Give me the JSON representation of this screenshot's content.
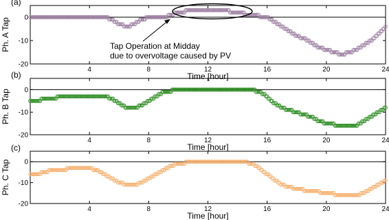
{
  "chart_data": [
    {
      "type": "scatter",
      "panel_label": "(a)",
      "title": "",
      "xlabel": "Time [hour]",
      "ylabel": "Ph. A Tap",
      "xlim": [
        0,
        24
      ],
      "ylim": [
        -20,
        5
      ],
      "xticks": [
        "4",
        "8",
        "12",
        "16",
        "20",
        "24"
      ],
      "yticks": [
        "0",
        "-10",
        "-20"
      ],
      "grid": false,
      "marker": "open-circle",
      "color": "#9b7da0",
      "annotation": "Tap Operation at Midday\ndue to overvoltage caused by PV",
      "series": [
        {
          "x": [
            0,
            5,
            5.5,
            6,
            6.5,
            7,
            7.5,
            8,
            8.5,
            9,
            9.5,
            10,
            11,
            12,
            13,
            14,
            15,
            16,
            16.5,
            17,
            17.5,
            18,
            18.5,
            19,
            19.5,
            20,
            20.5,
            21,
            21.5,
            22,
            22.5,
            23,
            23.5,
            24
          ],
          "y": [
            0,
            0,
            -1,
            -3,
            -4,
            -3,
            -1,
            0,
            0,
            0,
            1,
            2,
            3,
            3,
            3,
            2,
            1,
            0,
            -2,
            -4,
            -6,
            -8,
            -9,
            -11,
            -13,
            -14,
            -15,
            -16,
            -15,
            -14,
            -12,
            -10,
            -7,
            -4
          ]
        }
      ]
    },
    {
      "type": "scatter",
      "panel_label": "(b)",
      "title": "",
      "xlabel": "Time [hour]",
      "ylabel": "Ph. B Tap",
      "xlim": [
        0,
        24
      ],
      "ylim": [
        -20,
        5
      ],
      "xticks": [
        "4",
        "8",
        "12",
        "16",
        "20",
        "24"
      ],
      "yticks": [
        "0",
        "-10",
        "-20"
      ],
      "grid": false,
      "marker": "open-circle",
      "color": "#2a8a1e",
      "series": [
        {
          "x": [
            0,
            0.5,
            1,
            1.5,
            2,
            3,
            4,
            5,
            5.5,
            6,
            6.5,
            7,
            7.5,
            8,
            8.5,
            9,
            10,
            11,
            12,
            13,
            14,
            15,
            15.5,
            16,
            16.5,
            17,
            17.5,
            18,
            18.5,
            19,
            19.5,
            20,
            21,
            22,
            22.5,
            23,
            23.5,
            24
          ],
          "y": [
            -5,
            -5,
            -4,
            -4,
            -3,
            -3,
            -3,
            -3,
            -4,
            -6,
            -8,
            -8,
            -7,
            -5,
            -3,
            -1,
            0,
            0,
            0,
            0,
            0,
            0,
            -1,
            -3,
            -6,
            -8,
            -9,
            -10,
            -11,
            -12,
            -14,
            -15,
            -16,
            -16,
            -14,
            -12,
            -10,
            -8
          ]
        }
      ]
    },
    {
      "type": "scatter",
      "panel_label": "(c)",
      "title": "",
      "xlabel": "Time [hour]",
      "ylabel": "Ph. C Tap",
      "xlim": [
        0,
        24
      ],
      "ylim": [
        -20,
        5
      ],
      "xticks": [
        "4",
        "8",
        "12",
        "16",
        "20",
        "24"
      ],
      "yticks": [
        "0",
        "-10",
        "-20"
      ],
      "grid": false,
      "marker": "open-circle",
      "color": "#f5b06e",
      "series": [
        {
          "x": [
            0,
            0.5,
            1,
            1.5,
            2,
            3,
            4,
            4.5,
            5,
            5.5,
            6,
            6.5,
            7,
            7.5,
            8,
            8.5,
            9,
            9.5,
            10,
            11,
            12,
            13,
            14,
            14.5,
            15,
            15.5,
            16,
            17,
            18,
            19,
            20,
            21,
            22,
            22.5,
            23,
            23.5,
            24
          ],
          "y": [
            -6,
            -6,
            -5,
            -4,
            -4,
            -3,
            -3,
            -4,
            -6,
            -8,
            -10,
            -11,
            -11,
            -10,
            -8,
            -6,
            -4,
            -2,
            -1,
            0,
            0,
            0,
            0,
            0,
            -1,
            -3,
            -6,
            -11,
            -13,
            -14,
            -15,
            -16,
            -16,
            -15,
            -13,
            -11,
            -9
          ]
        }
      ]
    }
  ]
}
